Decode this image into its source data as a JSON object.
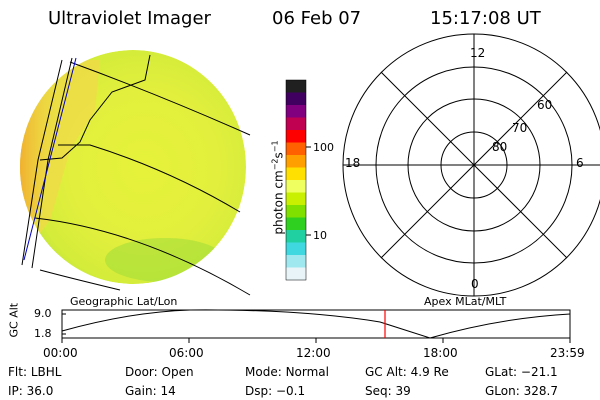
{
  "header": {
    "instrument": "Ultraviolet Imager",
    "date": "06 Feb 07",
    "time": "15:17:08 UT"
  },
  "colorbar": {
    "unit_prefix": "photon cm",
    "unit_exp1": "−2",
    "unit_mid": "s",
    "unit_exp2": "−1",
    "ticks": [
      "100",
      "10"
    ],
    "colors": [
      "#202020",
      "#400060",
      "#800080",
      "#c00050",
      "#ff0000",
      "#ff6000",
      "#ffa000",
      "#ffe000",
      "#f0ff60",
      "#c8f000",
      "#80e000",
      "#30d020",
      "#20d0a0",
      "#40d8e0",
      "#a0e8f0",
      "#e8f4f8"
    ]
  },
  "polar_plot": {
    "mlt_labels": {
      "top": "12",
      "bottom": "0",
      "left": "18",
      "right": "6"
    },
    "lat_labels": [
      "60",
      "70",
      "80"
    ]
  },
  "map_labels": {
    "left": "Geographic Lat/Lon",
    "right": "Apex MLat/MLT"
  },
  "orbit_plot": {
    "ylabel": "GC Alt",
    "ytick_top": "9.0",
    "ytick_bottom": "1.8",
    "xticks": [
      "00:00",
      "06:00",
      "12:00",
      "18:00",
      "23:59"
    ],
    "marker_color": "#ff0000"
  },
  "footer": {
    "row1": [
      {
        "key": "Flt:",
        "value": "LBHL"
      },
      {
        "key": "Door:",
        "value": "Open"
      },
      {
        "key": "Mode:",
        "value": "Normal"
      },
      {
        "key": "GC Alt:",
        "value": "4.9 Re"
      },
      {
        "key": "GLat:",
        "value": "−21.1"
      }
    ],
    "row2": [
      {
        "key": "IP:",
        "value": "36.0"
      },
      {
        "key": "Gain:",
        "value": "14"
      },
      {
        "key": "Dsp:",
        "value": "−0.1"
      },
      {
        "key": "Seq:",
        "value": "39"
      },
      {
        "key": "GLon:",
        "value": "328.7"
      }
    ]
  }
}
